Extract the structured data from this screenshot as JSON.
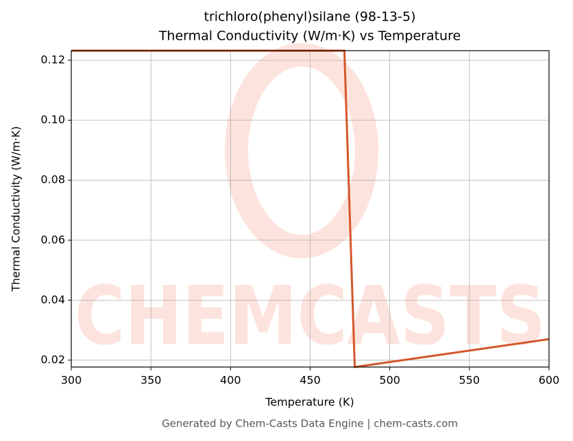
{
  "chart_data": {
    "type": "line",
    "title": "trichloro(phenyl)silane (98-13-5)",
    "subtitle": "Thermal Conductivity (W/m·K) vs Temperature",
    "x_label": "Temperature (K)",
    "y_label": "Thermal Conductivity (W/m·K)",
    "footer": "Generated by Chem-Casts Data Engine | chem-casts.com",
    "watermark": "CHEMCASTS",
    "x": [
      300,
      471.5,
      478,
      600
    ],
    "series": [
      {
        "name": "Thermal Conductivity",
        "color": "#d4562a",
        "values": [
          0.1232,
          0.1232,
          0.0177,
          0.027
        ]
      }
    ],
    "xlim": [
      300,
      600
    ],
    "xticks": [
      300,
      350,
      400,
      450,
      500,
      550,
      600
    ],
    "ylim": [
      0.0177,
      0.1232
    ],
    "yticks": [
      0.02,
      0.04,
      0.06,
      0.08,
      {
        "value": 0.1,
        "label": "0.10"
      },
      0.12
    ],
    "grid": true
  }
}
